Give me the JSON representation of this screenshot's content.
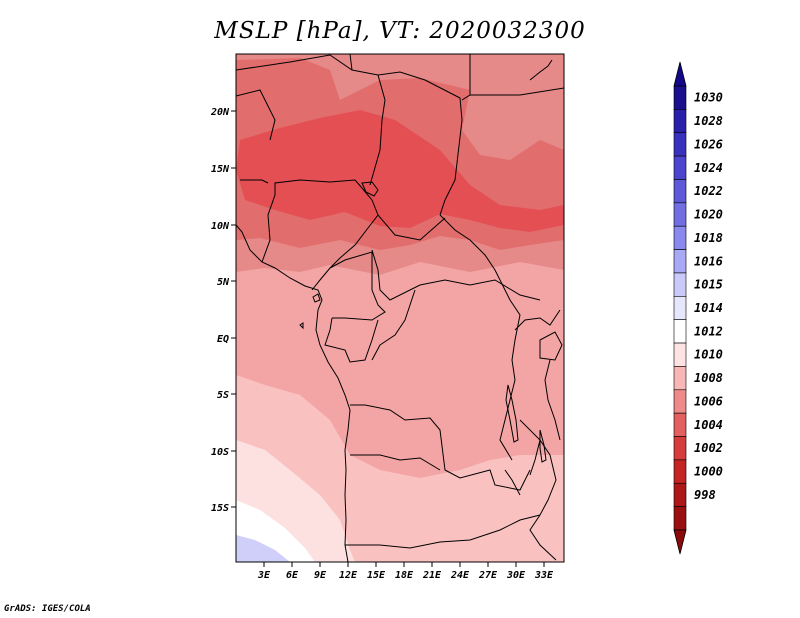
{
  "title": "MSLP [hPa], VT: 2020032300",
  "credit": "GrADS: IGES/COLA",
  "lat_labels": [
    "20N",
    "15N",
    "10N",
    "5N",
    "EQ",
    "5S",
    "10S",
    "15S"
  ],
  "lon_labels": [
    "3E",
    "6E",
    "9E",
    "12E",
    "15E",
    "18E",
    "21E",
    "24E",
    "27E",
    "30E",
    "33E"
  ],
  "colorbar": {
    "levels": [
      "1030",
      "1028",
      "1026",
      "1024",
      "1022",
      "1020",
      "1018",
      "1016",
      "1015",
      "1014",
      "1012",
      "1010",
      "1008",
      "1006",
      "1004",
      "1002",
      "1000",
      "998"
    ],
    "colors": [
      "#1a0f8c",
      "#2a1fa8",
      "#3a30be",
      "#4b44cf",
      "#5c5ad9",
      "#7070e3",
      "#8a8aee",
      "#a9a9f5",
      "#cacafa",
      "#e6e6fd",
      "#ffffff",
      "#ffe2e2",
      "#f9b6b6",
      "#ee8a8a",
      "#e26060",
      "#d63c3c",
      "#c42424",
      "#ac1818",
      "#9a1010"
    ],
    "top_color": "#14088a",
    "bottom_color": "#8b0a0a"
  },
  "fill_colors": {
    "p1004": "#e34f52",
    "p1006": "#e26d6d",
    "p1008": "#e68989",
    "p1010": "#f3a5a5",
    "p1012": "#fac1c1",
    "p1014": "#fde1e1",
    "p1016": "#ffffff",
    "p1018": "#cfcffa"
  }
}
